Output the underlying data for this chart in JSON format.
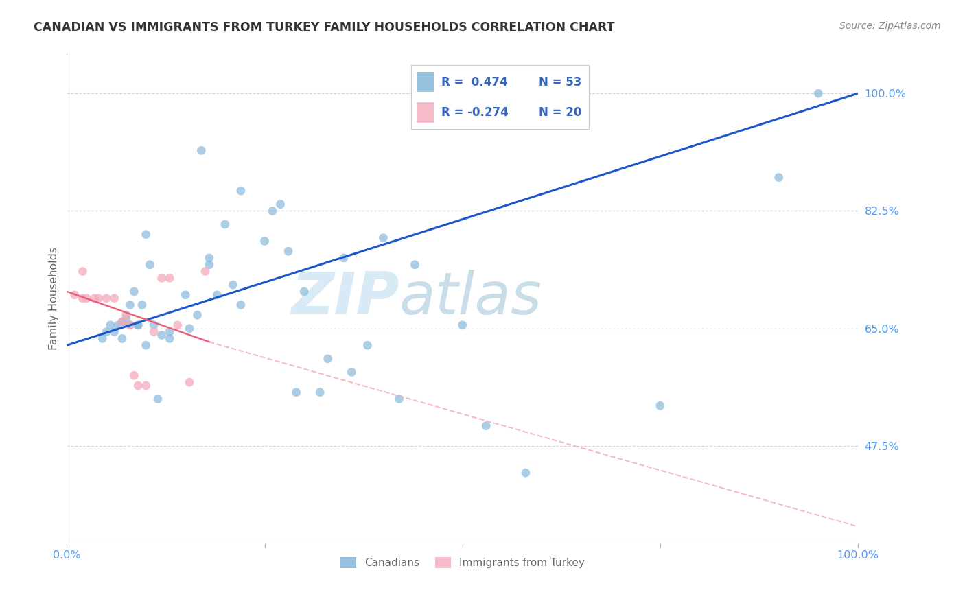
{
  "title": "CANADIAN VS IMMIGRANTS FROM TURKEY FAMILY HOUSEHOLDS CORRELATION CHART",
  "source": "Source: ZipAtlas.com",
  "ylabel": "Family Households",
  "yticks": [
    0.475,
    0.65,
    0.825,
    1.0
  ],
  "ytick_labels": [
    "47.5%",
    "65.0%",
    "82.5%",
    "100.0%"
  ],
  "xlim": [
    0.0,
    1.0
  ],
  "ylim": [
    0.33,
    1.06
  ],
  "legend_r_blue": "R =  0.474",
  "legend_n_blue": "N = 53",
  "legend_r_pink": "R = -0.274",
  "legend_n_pink": "N = 20",
  "watermark_zip": "ZIP",
  "watermark_atlas": "atlas",
  "blue_scatter_x": [
    0.17,
    0.22,
    0.2,
    0.25,
    0.1,
    0.08,
    0.07,
    0.09,
    0.11,
    0.13,
    0.15,
    0.18,
    0.08,
    0.09,
    0.12,
    0.06,
    0.07,
    0.065,
    0.055,
    0.1,
    0.045,
    0.05,
    0.075,
    0.085,
    0.095,
    0.105,
    0.115,
    0.32,
    0.38,
    0.44,
    0.5,
    0.26,
    0.27,
    0.29,
    0.33,
    0.36,
    0.42,
    0.3,
    0.35,
    0.4,
    0.22,
    0.18,
    0.13,
    0.155,
    0.165,
    0.19,
    0.21,
    0.28,
    0.53,
    0.58,
    0.75,
    0.9,
    0.95
  ],
  "blue_scatter_y": [
    0.915,
    0.855,
    0.805,
    0.78,
    0.79,
    0.685,
    0.66,
    0.655,
    0.655,
    0.645,
    0.7,
    0.755,
    0.655,
    0.655,
    0.64,
    0.645,
    0.635,
    0.655,
    0.655,
    0.625,
    0.635,
    0.645,
    0.665,
    0.705,
    0.685,
    0.745,
    0.545,
    0.555,
    0.625,
    0.745,
    0.655,
    0.825,
    0.835,
    0.555,
    0.605,
    0.585,
    0.545,
    0.705,
    0.755,
    0.785,
    0.685,
    0.745,
    0.635,
    0.65,
    0.67,
    0.7,
    0.715,
    0.765,
    0.505,
    0.435,
    0.535,
    0.875,
    1.0
  ],
  "pink_scatter_x": [
    0.01,
    0.02,
    0.025,
    0.035,
    0.04,
    0.05,
    0.06,
    0.07,
    0.075,
    0.08,
    0.085,
    0.09,
    0.1,
    0.11,
    0.12,
    0.13,
    0.14,
    0.155,
    0.175,
    0.02
  ],
  "pink_scatter_y": [
    0.7,
    0.695,
    0.695,
    0.695,
    0.695,
    0.695,
    0.695,
    0.66,
    0.67,
    0.655,
    0.58,
    0.565,
    0.565,
    0.645,
    0.725,
    0.725,
    0.655,
    0.57,
    0.735,
    0.735
  ],
  "blue_line_x0": 0.0,
  "blue_line_x1": 1.0,
  "blue_line_y0": 0.625,
  "blue_line_y1": 1.0,
  "pink_line_solid_x0": 0.0,
  "pink_line_solid_x1": 0.18,
  "pink_line_y0": 0.705,
  "pink_line_y1": 0.63,
  "pink_line_dash_x0": 0.18,
  "pink_line_dash_x1": 1.0,
  "pink_line_dash_y0": 0.63,
  "pink_line_dash_y1": 0.355,
  "scatter_size": 85,
  "blue_color": "#7EB3D8",
  "pink_color": "#F4AABC",
  "blue_line_color": "#1A56CC",
  "pink_line_solid_color": "#E8607A",
  "pink_line_dash_color": "#F4AABC",
  "grid_color": "#CCCCCC",
  "title_color": "#333333",
  "right_axis_color": "#5599EE",
  "bottom_axis_color": "#5599EE",
  "bg_color": "#FFFFFF"
}
